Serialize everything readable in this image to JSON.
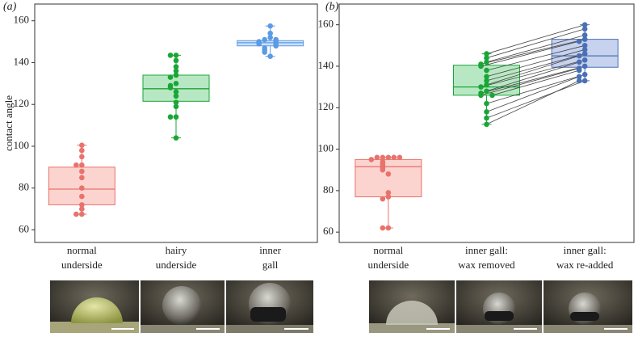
{
  "chart_data": [
    {
      "type": "box",
      "title": "(a)",
      "ylabel": "contact angle",
      "categories": [
        [
          "normal",
          "underside"
        ],
        [
          "hairy",
          "underside"
        ],
        [
          "inner",
          "gall"
        ]
      ],
      "colors": [
        "#e8736c",
        "#1aa637",
        "#5b9be6"
      ],
      "fills": [
        "#fbd3cf",
        "#b8e8c3",
        "#cfe0f8"
      ],
      "boxes": [
        {
          "whislo": 67.5,
          "q1": 72,
          "med": 79.5,
          "q3": 90,
          "whishi": 100.5
        },
        {
          "whislo": 104,
          "q1": 121.5,
          "med": 127.5,
          "q3": 134,
          "whishi": 143.5
        },
        {
          "whislo": 143,
          "q1": 148,
          "med": 149.5,
          "q3": 150.5,
          "whishi": 157.5
        }
      ],
      "points": [
        [
          100.5,
          98,
          95,
          91,
          91,
          88,
          85,
          80,
          76,
          72,
          70,
          67.5,
          67.5
        ],
        [
          143.5,
          143.5,
          141,
          138,
          136,
          134,
          133,
          130,
          129,
          128,
          126,
          124,
          121,
          119,
          114,
          114,
          104
        ],
        [
          157.5,
          154,
          152,
          151,
          151,
          150,
          150,
          149,
          149,
          148,
          147,
          146,
          145,
          143
        ]
      ],
      "ylim": [
        54,
        168
      ],
      "yticks": [
        60,
        80,
        100,
        120,
        140,
        160
      ]
    },
    {
      "type": "box",
      "title": "(b)",
      "categories": [
        [
          "normal",
          "underside"
        ],
        [
          "inner gall:",
          "wax removed"
        ],
        [
          "inner gall:",
          "wax re-added"
        ]
      ],
      "colors": [
        "#e8736c",
        "#1aa637",
        "#4a6fb5"
      ],
      "fills": [
        "#fbd3cf",
        "#b8e8c3",
        "#c6d2ee"
      ],
      "boxes": [
        {
          "whislo": 62,
          "q1": 77,
          "med": 91.5,
          "q3": 95,
          "whishi": 96
        },
        {
          "whislo": 112,
          "q1": 126,
          "med": 130,
          "q3": 140.5,
          "whishi": 146
        },
        {
          "whislo": 133,
          "q1": 139.5,
          "med": 145,
          "q3": 153,
          "whishi": 160
        }
      ],
      "points": [
        [
          96,
          96,
          96,
          96,
          96,
          95,
          94,
          93,
          92,
          91,
          90,
          88,
          79,
          77,
          76,
          62,
          62
        ],
        [
          146,
          144,
          142,
          141,
          140,
          138,
          135,
          133,
          131,
          130,
          128,
          127,
          126,
          126,
          122,
          118,
          115,
          112
        ],
        [
          160,
          158,
          155,
          153,
          152,
          150,
          148,
          146,
          145,
          143,
          142,
          140,
          139,
          138,
          136,
          135,
          133,
          133
        ]
      ],
      "connect_groups": [
        1,
        2
      ],
      "ylim": [
        55,
        170
      ],
      "yticks": [
        60,
        80,
        100,
        120,
        140,
        160
      ]
    }
  ]
}
